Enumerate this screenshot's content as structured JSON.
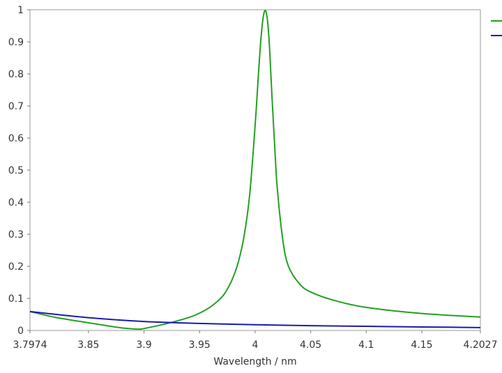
{
  "chart_data": {
    "type": "line",
    "xlabel": "Wavelength / nm",
    "ylabel": "",
    "xlim": [
      3.7974,
      4.2027
    ],
    "ylim": [
      0,
      1
    ],
    "x_ticks": [
      3.7974,
      3.85,
      3.9,
      3.95,
      4.0,
      4.05,
      4.1,
      4.15,
      4.2027
    ],
    "x_tick_labels": [
      "3.7974",
      "3.85",
      "3.9",
      "3.95",
      "4",
      "4.05",
      "4.1",
      "4.15",
      "4.2027"
    ],
    "y_ticks": [
      0,
      0.1,
      0.2,
      0.3,
      0.4,
      0.5,
      0.6,
      0.7,
      0.8,
      0.9,
      1
    ],
    "y_tick_labels": [
      "0",
      "0.1",
      "0.2",
      "0.3",
      "0.4",
      "0.5",
      "0.6",
      "0.7",
      "0.8",
      "0.9",
      "1"
    ],
    "grid": true,
    "legend_position": "right",
    "series": [
      {
        "color": "#22a022",
        "x": [
          3.7974,
          3.82,
          3.85,
          3.87,
          3.88,
          3.89,
          3.895,
          3.9,
          3.92,
          3.94,
          3.95,
          3.96,
          3.97,
          3.975,
          3.98,
          3.985,
          3.99,
          3.995,
          4.0,
          4.003,
          4.005,
          4.007,
          4.009,
          4.011,
          4.013,
          4.015,
          4.018,
          4.02,
          4.025,
          4.03,
          4.04,
          4.05,
          4.07,
          4.1,
          4.15,
          4.2027
        ],
        "y": [
          0.059,
          0.041,
          0.024,
          0.013,
          0.008,
          0.005,
          0.004,
          0.006,
          0.021,
          0.04,
          0.054,
          0.074,
          0.104,
          0.129,
          0.164,
          0.215,
          0.293,
          0.42,
          0.64,
          0.8,
          0.9,
          0.97,
          0.998,
          0.97,
          0.88,
          0.74,
          0.55,
          0.44,
          0.28,
          0.2,
          0.145,
          0.12,
          0.095,
          0.072,
          0.053,
          0.042
        ]
      },
      {
        "color": "#1a1ab0",
        "x": [
          3.7974,
          3.85,
          3.9,
          3.95,
          4.0,
          4.05,
          4.1,
          4.15,
          4.2027
        ],
        "y": [
          0.059,
          0.04,
          0.028,
          0.022,
          0.018,
          0.015,
          0.013,
          0.011,
          0.009
        ]
      }
    ]
  }
}
